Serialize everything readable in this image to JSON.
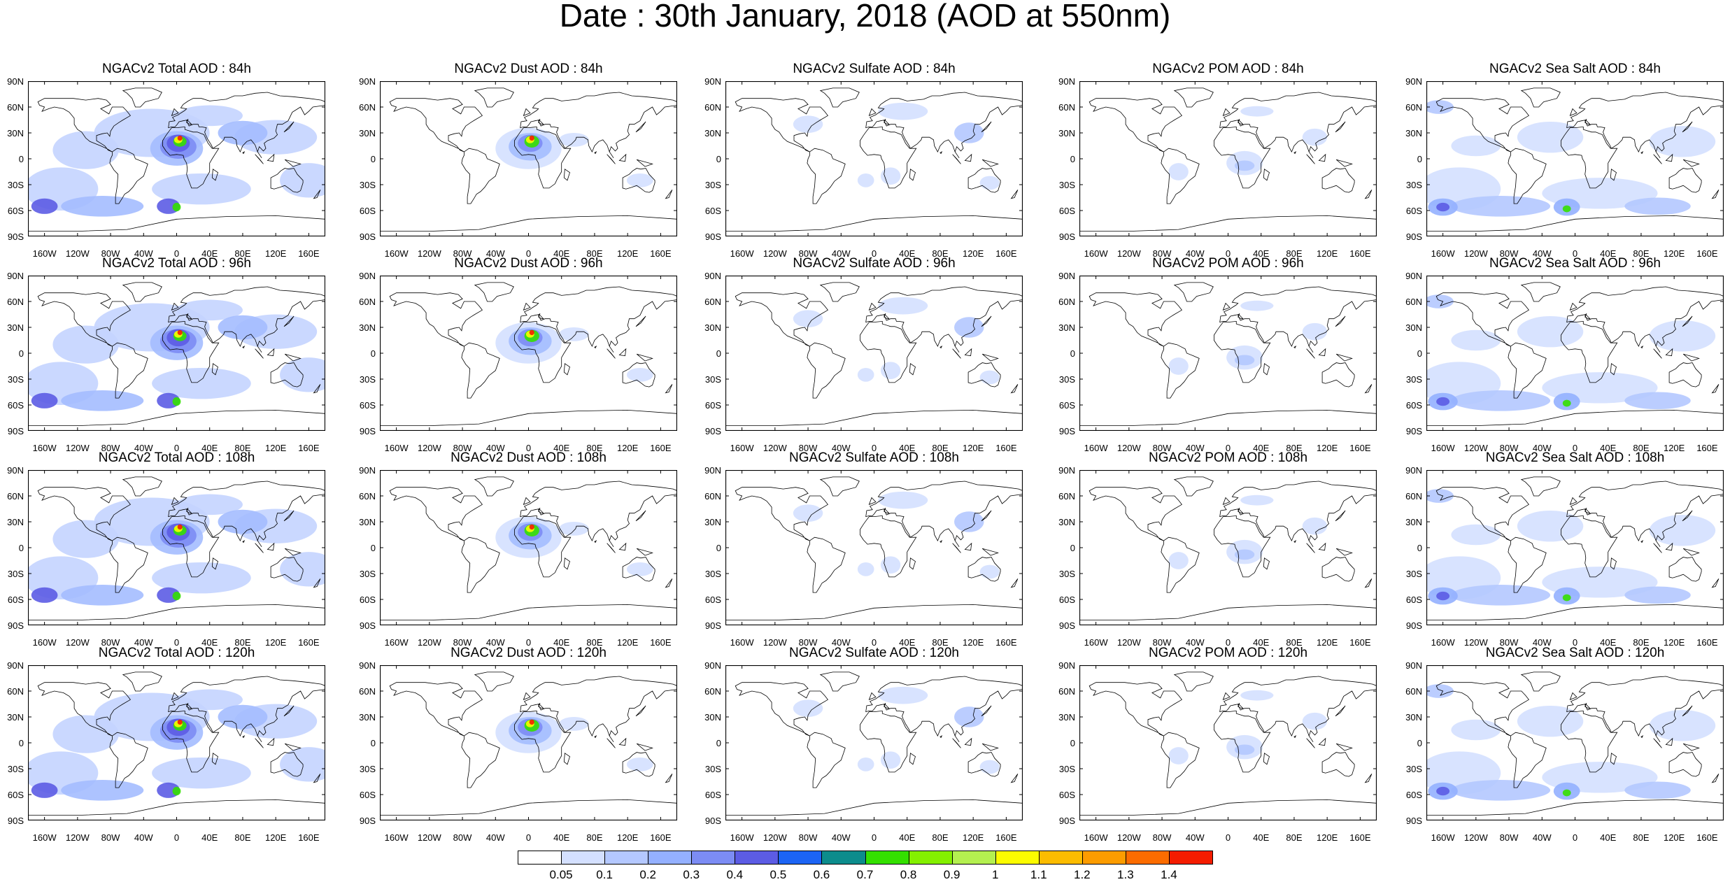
{
  "title": "Date : 30th January, 2018 (AOD at 550nm)",
  "lat_labels": [
    "90N",
    "60N",
    "30N",
    "0",
    "30S",
    "60S",
    "90S"
  ],
  "lon_labels": [
    "160W",
    "120W",
    "80W",
    "40W",
    "0",
    "40E",
    "80E",
    "120E",
    "160E"
  ],
  "columns": [
    {
      "species": "total"
    },
    {
      "species": "dust"
    },
    {
      "species": "sulfate"
    },
    {
      "species": "pom"
    },
    {
      "species": "seasalt"
    }
  ],
  "panels": [
    [
      "NGACv2 Total AOD : 84h",
      "NGACv2 Dust AOD : 84h",
      "NGACv2 Sulfate AOD : 84h",
      "NGACv2 POM AOD : 84h",
      "NGACv2 Sea Salt AOD : 84h"
    ],
    [
      "NGACv2 Total AOD : 96h",
      "NGACv2 Dust AOD : 96h",
      "NGACv2 Sulfate AOD : 96h",
      "NGACv2 POM AOD : 96h",
      "NGACv2 Sea Salt AOD : 96h"
    ],
    [
      "NGACv2 Total AOD : 108h",
      "NGACv2 Dust AOD : 108h",
      "NGACv2 Sulfate AOD : 108h",
      "NGACv2 POM AOD : 108h",
      "NGACv2 Sea Salt AOD : 108h"
    ],
    [
      "NGACv2 Total AOD : 120h",
      "NGACv2 Dust AOD : 120h",
      "NGACv2 Sulfate AOD : 120h",
      "NGACv2 POM AOD : 120h",
      "NGACv2 Sea Salt  AOD : 120h"
    ]
  ],
  "colorbar": {
    "labels": [
      "0.05",
      "0.1",
      "0.2",
      "0.3",
      "0.4",
      "0.5",
      "0.6",
      "0.7",
      "0.8",
      "0.9",
      "1",
      "1.1",
      "1.2",
      "1.3",
      "1.4"
    ],
    "colors": [
      "#ffffff",
      "#d4e0ff",
      "#b4c8ff",
      "#94b0ff",
      "#7c8cf4",
      "#5c5ce4",
      "#1c64f4",
      "#0c8c8c",
      "#34e000",
      "#84f000",
      "#b4f050",
      "#fcfc00",
      "#fcbc00",
      "#fc9c00",
      "#fc6c00",
      "#f41c00"
    ]
  },
  "plume_colors": {
    "total": [
      "#c4d4ff",
      "#a4bcff",
      "#7c8cf4",
      "#5c5ce4",
      "#34e000",
      "#fcfc00",
      "#fc9c00",
      "#f41c00"
    ],
    "dust": [
      "#d4e0ff",
      "#a4bcff",
      "#7c8cf4",
      "#34e000",
      "#fcfc00",
      "#fc6c00",
      "#f41c00"
    ],
    "sulfate": [
      "#d4e0ff",
      "#b4c8ff",
      "#94b0ff"
    ],
    "pom": [
      "#d4e0ff",
      "#b4c8ff"
    ],
    "seasalt": [
      "#d4e0ff",
      "#b4c8ff",
      "#94b0ff",
      "#5c5ce4",
      "#34e000"
    ]
  }
}
